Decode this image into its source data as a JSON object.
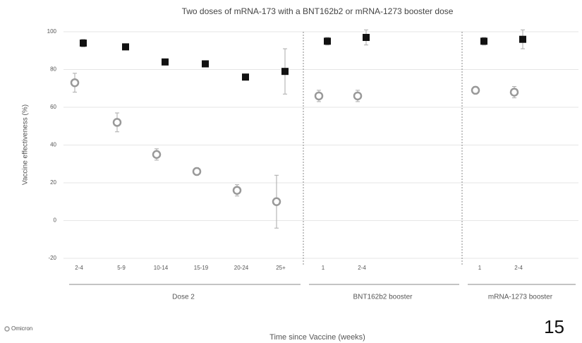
{
  "chart_data": {
    "type": "scatter",
    "title": "Two doses of mRNA-173 with a BNT162b2 or mRNA-1273 booster dose",
    "y_label": "Vaccine effectiveness (%)",
    "x_label": "Time since Vaccine (weeks)",
    "groups": [
      {
        "label": "Dose 2",
        "categories": [
          "2-4",
          "5-9",
          "10-14",
          "15-19",
          "20-24",
          "25+"
        ]
      },
      {
        "label": "BNT162b2 booster",
        "categories": [
          "1",
          "2-4"
        ]
      },
      {
        "label": "mRNA-1273 booster",
        "categories": [
          "1",
          "2-4"
        ]
      }
    ],
    "series": [
      {
        "name": "Omicron",
        "color": "#999999",
        "marker": "circle",
        "values": [
          73,
          52,
          35,
          26,
          16,
          10,
          66,
          66,
          69,
          68
        ],
        "errors": [
          5,
          5,
          3,
          2,
          3,
          14,
          3,
          3,
          2,
          3
        ]
      },
      {
        "color": "#111111",
        "marker": "square",
        "values": [
          94,
          92,
          84,
          83,
          76,
          79,
          95,
          97,
          95,
          96
        ],
        "errors": [
          2,
          1,
          1,
          1,
          1,
          12,
          2,
          4,
          2,
          5
        ]
      }
    ],
    "ylim": [
      -20,
      100
    ],
    "yticks": [
      -20,
      0,
      20,
      40,
      60,
      80,
      100
    ],
    "page_number": "15"
  }
}
